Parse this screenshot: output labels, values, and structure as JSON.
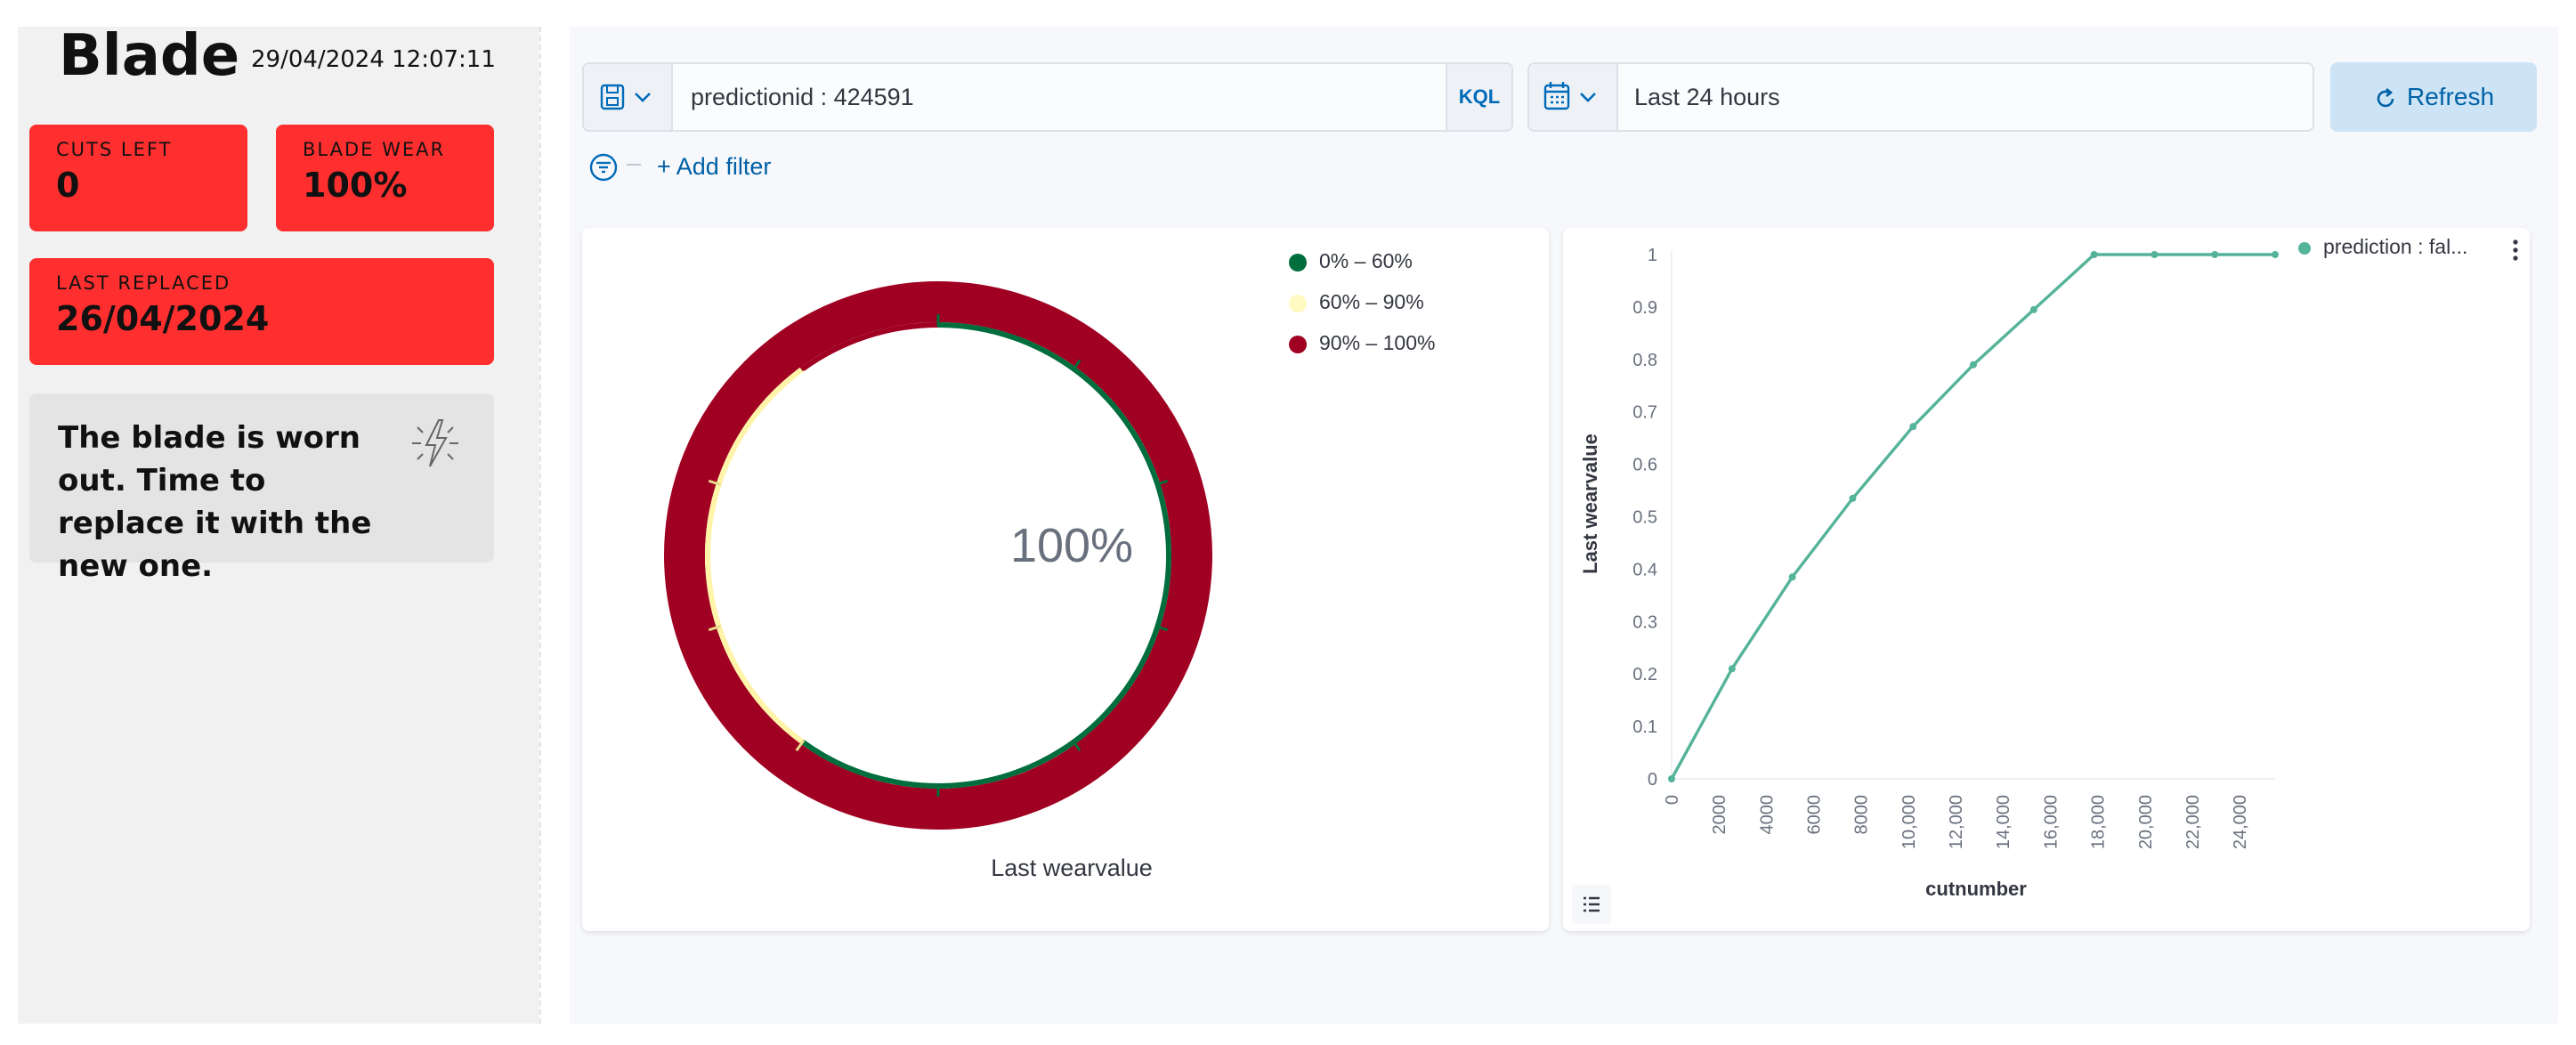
{
  "blade": {
    "title": "Blade",
    "datetime": "29/04/2024 12:07:11",
    "cuts_left_label": "CUTS LEFT",
    "cuts_left_value": "0",
    "blade_wear_label": "BLADE WEAR",
    "blade_wear_value": "100%",
    "last_replaced_label": "LAST REPLACED",
    "last_replaced_value": "26/04/2024",
    "message": "The blade is worn out. Time to replace it with the new one.",
    "alert_color": "#ff2f2f",
    "message_icon": "lightning-bolt-icon"
  },
  "query": {
    "text": "predictionid : 424591",
    "language_label": "KQL"
  },
  "time": {
    "range": "Last 24 hours"
  },
  "toolbar": {
    "refresh_label": "Refresh",
    "add_filter_label": "+ Add filter"
  },
  "gauge": {
    "value_label": "100%",
    "value": 1.0,
    "label": "Last wearvalue",
    "legend": [
      {
        "label": "0% – 60%",
        "color": "#006d3c"
      },
      {
        "label": "60% – 90%",
        "color": "#fff9c2"
      },
      {
        "label": "90% – 100%",
        "color": "#a00021"
      }
    ]
  },
  "chart_data": {
    "type": "line",
    "xlabel": "cutnumber",
    "ylabel": "Last wearvalue",
    "xlim": [
      0,
      25500
    ],
    "ylim": [
      0,
      1
    ],
    "x_ticks": [
      "0",
      "2000",
      "4000",
      "6000",
      "8000",
      "10,000",
      "12,000",
      "14,000",
      "16,000",
      "18,000",
      "20,000",
      "22,000",
      "24,000"
    ],
    "y_ticks": [
      "0",
      "0.1",
      "0.2",
      "0.3",
      "0.4",
      "0.5",
      "0.6",
      "0.7",
      "0.8",
      "0.9",
      "1"
    ],
    "series": [
      {
        "name": "prediction : fal...",
        "color": "#54b399",
        "x": [
          0,
          2550,
          5100,
          7650,
          10200,
          12750,
          15300,
          17850,
          20400,
          22950,
          25500
        ],
        "y": [
          0,
          0.21,
          0.385,
          0.535,
          0.672,
          0.79,
          0.895,
          1.0,
          1.0,
          1.0,
          1.0
        ]
      }
    ],
    "legend_position": "top-right"
  }
}
